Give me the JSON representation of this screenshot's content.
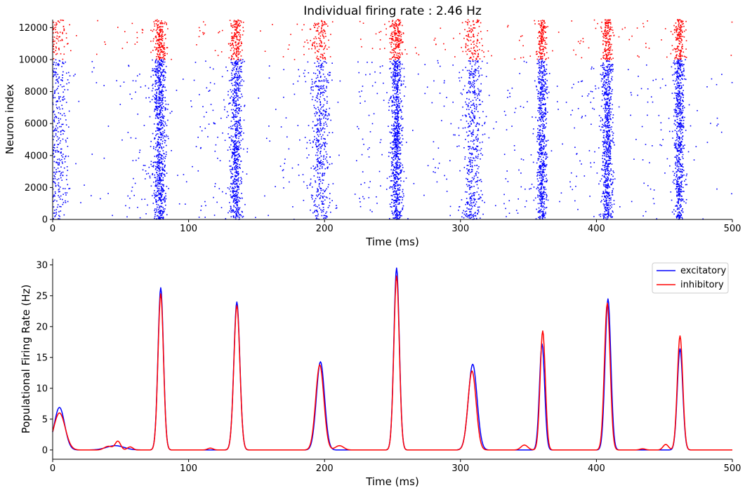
{
  "chart_data": [
    {
      "type": "scatter",
      "title": "Individual firing rate :  2.46 Hz",
      "xlabel": "Time (ms)",
      "ylabel": "Neuron index",
      "xlim": [
        0,
        500
      ],
      "ylim": [
        0,
        12500
      ],
      "xticks": [
        0,
        100,
        200,
        300,
        400,
        500
      ],
      "yticks": [
        0,
        2000,
        4000,
        6000,
        8000,
        10000,
        12000
      ],
      "spines": "left-bottom",
      "populations": [
        {
          "name": "excitatory",
          "color": "#0000ff",
          "neuron_range": [
            0,
            10000
          ]
        },
        {
          "name": "inhibitory",
          "color": "#ff0000",
          "neuron_range": [
            10000,
            12500
          ]
        }
      ],
      "burst_times_ms": [
        3,
        79,
        135,
        197,
        253,
        309,
        360,
        408,
        461
      ],
      "burst_widths_ms": [
        4,
        2.2,
        2.3,
        3.6,
        2.2,
        3.6,
        1.8,
        2.0,
        1.9
      ],
      "burst_densities": [
        0.5,
        1.0,
        0.9,
        0.6,
        1.0,
        0.6,
        0.8,
        0.9,
        0.8
      ],
      "background_spikes_per_ms": 0.7
    },
    {
      "type": "line",
      "xlabel": "Time (ms)",
      "ylabel": "Populational Firing Rate (Hz)",
      "xlim": [
        0,
        500
      ],
      "ylim": [
        -1.5,
        31
      ],
      "xticks": [
        0,
        100,
        200,
        300,
        400,
        500
      ],
      "yticks": [
        0,
        5,
        10,
        15,
        20,
        25,
        30
      ],
      "spines": "left-bottom",
      "legend_position": "top-right",
      "series": [
        {
          "name": "excitatory",
          "color": "#0000ff",
          "peaks": [
            {
              "t": 5,
              "h": 6.9,
              "w": 3.8
            },
            {
              "t": 46,
              "h": 0.7,
              "w": 6.5
            },
            {
              "t": 79.5,
              "h": 26.3,
              "w": 2.0
            },
            {
              "t": 135.5,
              "h": 24.0,
              "w": 2.2
            },
            {
              "t": 197,
              "h": 14.3,
              "w": 3.0
            },
            {
              "t": 253,
              "h": 29.5,
              "w": 2.0
            },
            {
              "t": 309,
              "h": 13.9,
              "w": 3.2
            },
            {
              "t": 360,
              "h": 17.2,
              "w": 1.9
            },
            {
              "t": 408.5,
              "h": 24.5,
              "w": 2.1
            },
            {
              "t": 461.5,
              "h": 16.4,
              "w": 2.0
            }
          ]
        },
        {
          "name": "inhibitory",
          "color": "#ff0000",
          "peaks": [
            {
              "t": 5,
              "h": 6.0,
              "w": 4.2
            },
            {
              "t": 41,
              "h": 0.6,
              "w": 3.0
            },
            {
              "t": 48,
              "h": 1.4,
              "w": 2.0
            },
            {
              "t": 57,
              "h": 0.5,
              "w": 2.0
            },
            {
              "t": 79.5,
              "h": 25.3,
              "w": 2.0
            },
            {
              "t": 116,
              "h": 0.3,
              "w": 2.0
            },
            {
              "t": 135.5,
              "h": 23.4,
              "w": 2.2
            },
            {
              "t": 196.5,
              "h": 13.8,
              "w": 3.0
            },
            {
              "t": 211,
              "h": 0.7,
              "w": 3.0
            },
            {
              "t": 253,
              "h": 28.2,
              "w": 2.0
            },
            {
              "t": 308.5,
              "h": 12.8,
              "w": 3.0
            },
            {
              "t": 347,
              "h": 0.8,
              "w": 2.5
            },
            {
              "t": 360.5,
              "h": 19.3,
              "w": 1.9
            },
            {
              "t": 408,
              "h": 23.8,
              "w": 2.1
            },
            {
              "t": 434,
              "h": 0.2,
              "w": 2.0
            },
            {
              "t": 451,
              "h": 0.9,
              "w": 2.0
            },
            {
              "t": 461.5,
              "h": 18.5,
              "w": 2.0
            }
          ]
        }
      ]
    }
  ]
}
